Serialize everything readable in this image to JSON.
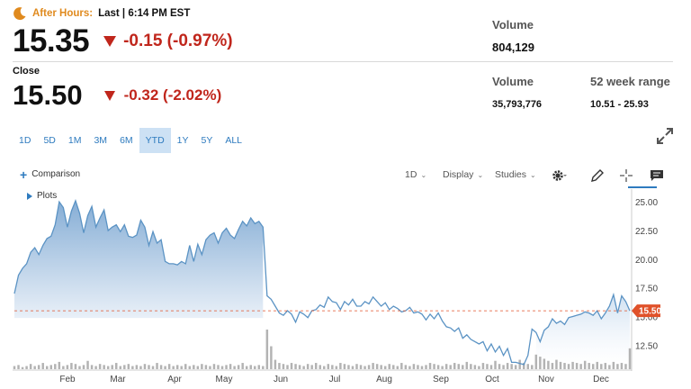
{
  "header": {
    "after_hours_label": "After Hours:",
    "after_hours_time": "Last | 6:14 PM EST",
    "after_price": "15.35",
    "after_change": "-0.15 (-0.97%)",
    "after_volume_label": "Volume",
    "after_volume": "804,129",
    "close_label": "Close",
    "close_price": "15.50",
    "close_change": "-0.32 (-2.02%)",
    "volume_label": "Volume",
    "volume": "35,793,776",
    "range_label": "52 week range",
    "range": "10.51 - 25.93"
  },
  "periods": [
    {
      "label": "1D"
    },
    {
      "label": "5D"
    },
    {
      "label": "1M"
    },
    {
      "label": "3M"
    },
    {
      "label": "6M"
    },
    {
      "label": "YTD"
    },
    {
      "label": "1Y"
    },
    {
      "label": "5Y"
    },
    {
      "label": "ALL"
    }
  ],
  "active_period": "YTD",
  "toolbar": {
    "comparison": "Comparison",
    "interval": "1D",
    "display": "Display",
    "studies": "Studies",
    "plots": "Plots"
  },
  "colors": {
    "line": "#5b93c4",
    "negative": "#c0261c",
    "accent": "#2e7bbf",
    "after_hours": "#e08a1e",
    "last_price_tag": "#e0522a"
  },
  "chart_data": {
    "type": "area",
    "x_tick_labels": [
      "Feb",
      "Mar",
      "Apr",
      "May",
      "Jun",
      "Jul",
      "Aug",
      "Sep",
      "Oct",
      "Nov",
      "Dec"
    ],
    "y_tick_labels": [
      "25.00",
      "22.50",
      "20.00",
      "17.50",
      "15.00",
      "12.50"
    ],
    "y_ticks": [
      25,
      22.5,
      20,
      17.5,
      15,
      12.5
    ],
    "ylim": [
      10.4,
      25.8
    ],
    "last_price_label": "15.50",
    "last_price": 15.5,
    "shading": "fill under line from start to end of April",
    "grid": false,
    "series": [
      {
        "values": [
          17.0,
          18.6,
          19.2,
          19.6,
          20.6,
          21.0,
          20.4,
          21.2,
          21.8,
          22.0,
          23.0,
          25.0,
          24.5,
          22.8,
          24.2,
          25.1,
          24.0,
          22.3,
          23.8,
          24.6,
          22.8,
          23.6,
          24.3,
          22.5,
          22.8,
          23.0,
          22.4,
          23.0,
          22.0,
          21.9,
          22.1,
          23.4,
          22.8,
          21.2,
          22.4,
          21.4,
          21.7,
          19.8,
          19.6,
          19.6,
          19.5,
          19.8,
          19.6,
          21.2,
          19.8,
          21.3,
          20.4,
          21.7,
          22.1,
          22.3,
          21.4,
          22.3,
          22.7,
          22.1,
          21.8,
          22.6,
          23.3,
          22.9,
          23.6,
          23.1,
          23.3,
          22.8,
          16.8,
          16.5,
          15.9,
          15.3,
          15.1,
          15.5,
          15.2,
          14.5,
          15.4,
          15.2,
          14.9,
          15.5,
          15.6,
          16.0,
          15.8,
          16.7,
          16.3,
          16.2,
          15.6,
          16.3,
          16.0,
          16.5,
          15.9,
          15.9,
          16.3,
          16.1,
          16.7,
          16.3,
          15.9,
          16.2,
          15.6,
          15.9,
          15.7,
          15.4,
          15.5,
          15.8,
          15.3,
          15.4,
          15.2,
          14.7,
          15.2,
          14.8,
          15.3,
          14.6,
          14.1,
          14.0,
          13.7,
          14.0,
          13.1,
          13.4,
          13.0,
          12.8,
          12.6,
          12.8,
          12.0,
          12.6,
          11.9,
          12.4,
          11.6,
          12.2,
          11.0,
          11.0,
          10.9,
          10.8,
          11.6,
          13.9,
          13.6,
          12.8,
          13.8,
          14.1,
          14.8,
          14.4,
          14.6,
          14.3,
          14.9,
          15.0,
          15.1,
          15.2,
          15.4,
          15.3,
          15.1,
          15.5,
          14.8,
          15.3,
          15.9,
          16.9,
          15.3,
          16.8,
          16.3,
          15.5
        ]
      }
    ],
    "volume": [
      3,
      4,
      2,
      3,
      5,
      3,
      4,
      6,
      3,
      4,
      5,
      7,
      3,
      4,
      6,
      5,
      3,
      4,
      8,
      4,
      3,
      5,
      4,
      3,
      4,
      6,
      3,
      4,
      5,
      3,
      4,
      3,
      5,
      4,
      3,
      6,
      4,
      3,
      5,
      3,
      4,
      3,
      5,
      3,
      4,
      3,
      5,
      4,
      3,
      5,
      4,
      3,
      4,
      5,
      3,
      4,
      6,
      3,
      4,
      3,
      4,
      3,
      38,
      22,
      9,
      6,
      5,
      4,
      6,
      5,
      4,
      3,
      5,
      4,
      6,
      4,
      3,
      5,
      4,
      3,
      6,
      5,
      4,
      3,
      5,
      4,
      3,
      4,
      6,
      5,
      4,
      3,
      5,
      4,
      3,
      6,
      4,
      3,
      5,
      4,
      3,
      4,
      6,
      5,
      4,
      3,
      5,
      4,
      6,
      5,
      4,
      7,
      5,
      4,
      3,
      6,
      5,
      4,
      8,
      5,
      4,
      6,
      5,
      4,
      9,
      6,
      5,
      4,
      14,
      12,
      10,
      8,
      6,
      9,
      7,
      6,
      5,
      7,
      6,
      5,
      8,
      6,
      5,
      7,
      5,
      6,
      4,
      7,
      5,
      6,
      5,
      20
    ]
  }
}
